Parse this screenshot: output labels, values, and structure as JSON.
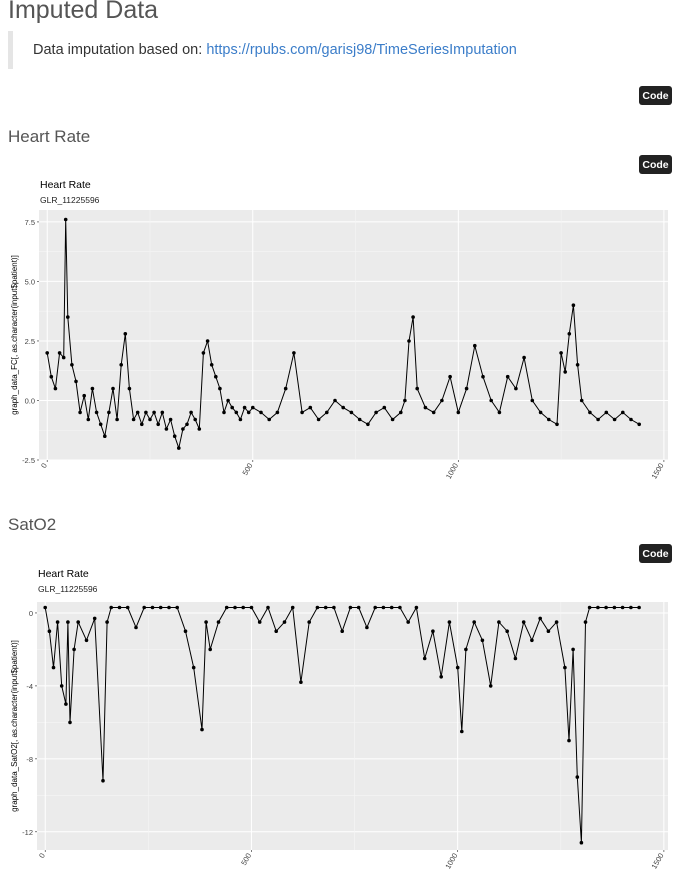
{
  "page": {
    "title": "Imputed Data",
    "note_prefix": "Data imputation based on: ",
    "note_link": "https://rpubs.com/garisj98/TimeSeriesImputation",
    "code_label": "Code"
  },
  "sections": [
    {
      "title": "Heart Rate"
    },
    {
      "title": "SatO2"
    }
  ],
  "chart_data": [
    {
      "type": "line",
      "title": "Heart Rate",
      "subtitle": "GLR_11225596",
      "xlabel": "",
      "ylabel": "graph_data_FC[, as.character(input$patient)]",
      "xlim": [
        -20,
        1510
      ],
      "ylim": [
        -2.5,
        8
      ],
      "x_ticks": [
        0,
        500,
        1000,
        1500
      ],
      "y_ticks": [
        -2.5,
        0.0,
        2.5,
        5.0,
        7.5
      ],
      "y_tick_labels": [
        "-2.5",
        "0.0",
        "2.5",
        "5.0",
        "7.5"
      ],
      "grid": true,
      "series": [
        {
          "color": "#000000",
          "x": [
            0,
            10,
            20,
            30,
            40,
            45,
            50,
            60,
            70,
            80,
            90,
            100,
            110,
            120,
            130,
            140,
            150,
            160,
            170,
            180,
            190,
            200,
            210,
            220,
            230,
            240,
            250,
            260,
            270,
            280,
            290,
            300,
            310,
            320,
            330,
            340,
            350,
            360,
            370,
            380,
            390,
            400,
            410,
            420,
            430,
            440,
            450,
            460,
            470,
            480,
            490,
            500,
            520,
            540,
            560,
            580,
            600,
            620,
            640,
            660,
            680,
            700,
            720,
            740,
            760,
            780,
            800,
            820,
            840,
            860,
            870,
            880,
            890,
            900,
            920,
            940,
            960,
            980,
            1000,
            1020,
            1040,
            1060,
            1080,
            1100,
            1120,
            1140,
            1160,
            1180,
            1200,
            1220,
            1240,
            1250,
            1260,
            1270,
            1280,
            1290,
            1300,
            1320,
            1340,
            1360,
            1380,
            1400,
            1420,
            1440
          ],
          "y": [
            2.0,
            1.0,
            0.5,
            2.0,
            1.8,
            7.6,
            3.5,
            1.5,
            0.8,
            -0.5,
            0.2,
            -0.8,
            0.5,
            -0.5,
            -1.0,
            -1.5,
            -0.5,
            0.5,
            -0.8,
            1.5,
            2.8,
            0.5,
            -0.8,
            -0.5,
            -1.0,
            -0.5,
            -0.8,
            -0.5,
            -1.0,
            -0.5,
            -1.2,
            -0.8,
            -1.5,
            -2.0,
            -1.2,
            -1.0,
            -0.5,
            -0.8,
            -1.2,
            2.0,
            2.5,
            1.5,
            1.0,
            0.5,
            -0.5,
            0.0,
            -0.3,
            -0.5,
            -0.8,
            -0.3,
            -0.5,
            -0.3,
            -0.5,
            -0.8,
            -0.5,
            0.5,
            2.0,
            -0.5,
            -0.3,
            -0.8,
            -0.5,
            0.0,
            -0.3,
            -0.5,
            -0.8,
            -1.0,
            -0.5,
            -0.3,
            -0.8,
            -0.5,
            0.0,
            2.5,
            3.5,
            0.5,
            -0.3,
            -0.5,
            0.0,
            1.0,
            -0.5,
            0.5,
            2.3,
            1.0,
            0.0,
            -0.5,
            1.0,
            0.5,
            1.8,
            0.0,
            -0.5,
            -0.8,
            -1.0,
            2.0,
            1.2,
            2.8,
            4.0,
            1.5,
            0.0,
            -0.5,
            -0.8,
            -0.5,
            -0.8,
            -0.5,
            -0.8,
            -1.0
          ]
        }
      ]
    },
    {
      "type": "line",
      "title": "Heart Rate",
      "subtitle": "GLR_11225596",
      "xlabel": "",
      "ylabel": "graph_data_SatO2[, as.character(input$patient)]",
      "xlim": [
        -20,
        1510
      ],
      "ylim": [
        -13,
        0.6
      ],
      "x_ticks": [
        0,
        500,
        1000,
        1500
      ],
      "y_ticks": [
        -12,
        -8,
        -4,
        0
      ],
      "y_tick_labels": [
        "-12",
        "-8",
        "-4",
        "0"
      ],
      "grid": true,
      "series": [
        {
          "color": "#000000",
          "x": [
            0,
            10,
            20,
            30,
            40,
            50,
            55,
            60,
            70,
            80,
            100,
            120,
            140,
            150,
            160,
            180,
            200,
            220,
            240,
            260,
            280,
            300,
            320,
            340,
            360,
            380,
            390,
            400,
            420,
            440,
            460,
            480,
            500,
            520,
            540,
            560,
            580,
            600,
            620,
            640,
            660,
            680,
            700,
            720,
            740,
            760,
            780,
            800,
            820,
            840,
            860,
            880,
            900,
            920,
            940,
            960,
            980,
            1000,
            1010,
            1020,
            1040,
            1060,
            1080,
            1100,
            1120,
            1140,
            1160,
            1180,
            1200,
            1220,
            1240,
            1260,
            1270,
            1280,
            1290,
            1300,
            1310,
            1320,
            1340,
            1360,
            1380,
            1400,
            1420,
            1440
          ],
          "y": [
            0.3,
            -1.0,
            -3.0,
            -0.5,
            -4.0,
            -5.0,
            -0.5,
            -6.0,
            -2.0,
            -0.5,
            -1.5,
            -0.3,
            -9.2,
            -0.5,
            0.3,
            0.3,
            0.3,
            -0.8,
            0.3,
            0.3,
            0.3,
            0.3,
            0.3,
            -1.0,
            -3.0,
            -6.4,
            -0.5,
            -2.0,
            -0.5,
            0.3,
            0.3,
            0.3,
            0.3,
            -0.5,
            0.3,
            -1.0,
            -0.5,
            0.3,
            -3.8,
            -0.5,
            0.3,
            0.3,
            0.3,
            -1.0,
            0.3,
            0.3,
            -0.8,
            0.3,
            0.3,
            0.3,
            0.3,
            -0.5,
            0.3,
            -2.5,
            -1.0,
            -3.5,
            -0.5,
            -3.0,
            -6.5,
            -2.0,
            -0.5,
            -1.5,
            -4.0,
            -0.5,
            -1.0,
            -2.5,
            -0.5,
            -1.5,
            -0.3,
            -1.0,
            -0.5,
            -3.0,
            -7.0,
            -2.0,
            -9.0,
            -12.6,
            -0.5,
            0.3,
            0.3,
            0.3,
            0.3,
            0.3,
            0.3,
            0.3
          ]
        }
      ]
    }
  ]
}
